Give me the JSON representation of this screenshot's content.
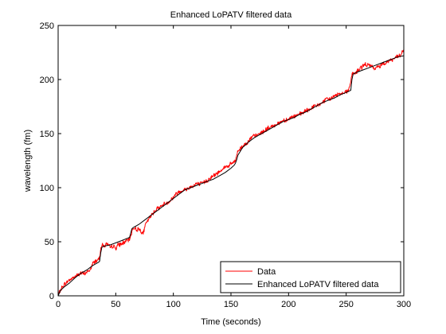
{
  "chart_data": {
    "type": "line",
    "title": "Enhanced LoPATV filtered data",
    "xlabel": "Time (seconds)",
    "ylabel": "wavelength  (fm)",
    "xlim": [
      0,
      300
    ],
    "ylim": [
      0,
      250
    ],
    "xticks": [
      0,
      50,
      100,
      150,
      200,
      250,
      300
    ],
    "yticks": [
      0,
      50,
      100,
      150,
      200,
      250
    ],
    "xtick_labels": [
      "0",
      "50",
      "100",
      "150",
      "200",
      "250",
      "300"
    ],
    "ytick_labels": [
      "0",
      "50",
      "100",
      "150",
      "200",
      "250"
    ],
    "grid": false,
    "legend_position": "bottom-right",
    "series": [
      {
        "name": "Data",
        "color": "#ff0000",
        "style": "noisy",
        "x": [
          0,
          1,
          3,
          5,
          8,
          10,
          12,
          15,
          18,
          20,
          22,
          25,
          28,
          30,
          32,
          34,
          35,
          36,
          37,
          38,
          40,
          42,
          45,
          48,
          50,
          52,
          55,
          58,
          60,
          62,
          63,
          64,
          65,
          66,
          68,
          70,
          72,
          74,
          75,
          76,
          78,
          80,
          82,
          85,
          88,
          90,
          92,
          95,
          98,
          100,
          102,
          105,
          108,
          110,
          112,
          115,
          118,
          120,
          122,
          125,
          128,
          130,
          132,
          135,
          138,
          140,
          142,
          145,
          148,
          150,
          152,
          154,
          155,
          156,
          158,
          160,
          162,
          165,
          168,
          170,
          172,
          175,
          178,
          180,
          182,
          185,
          188,
          190,
          192,
          195,
          198,
          200,
          202,
          205,
          208,
          210,
          212,
          215,
          218,
          220,
          222,
          225,
          228,
          230,
          232,
          235,
          238,
          240,
          242,
          245,
          248,
          250,
          252,
          254,
          255,
          256,
          258,
          260,
          262,
          265,
          268,
          270,
          272,
          275,
          278,
          280,
          282,
          285,
          288,
          290,
          292,
          295,
          297,
          298,
          299,
          300
        ],
        "y": [
          0,
          3,
          7,
          10,
          13,
          15,
          16,
          18,
          20,
          21,
          20,
          22,
          24,
          30,
          32,
          33,
          34,
          36,
          45,
          47,
          46,
          48,
          45,
          46,
          44,
          47,
          48,
          50,
          51,
          52,
          55,
          60,
          62,
          63,
          61,
          62,
          60,
          58,
          63,
          66,
          70,
          73,
          76,
          80,
          82,
          83,
          85,
          86,
          89,
          91,
          94,
          96,
          98,
          98,
          99,
          101,
          102,
          104,
          103,
          104,
          106,
          107,
          109,
          111,
          113,
          115,
          117,
          119,
          120,
          122,
          123,
          125,
          130,
          134,
          136,
          138,
          140,
          143,
          146,
          148,
          148,
          150,
          152,
          153,
          155,
          156,
          158,
          159,
          160,
          162,
          163,
          163,
          165,
          166,
          167,
          168,
          169,
          171,
          172,
          174,
          175,
          176,
          178,
          179,
          181,
          182,
          183,
          185,
          186,
          187,
          188,
          189,
          190,
          198,
          205,
          205,
          206,
          208,
          210,
          213,
          214,
          213,
          212,
          210,
          212,
          213,
          215,
          216,
          218,
          218,
          220,
          221,
          222,
          224,
          226,
          226
        ]
      },
      {
        "name": "Enhanced LoPATV filtered data",
        "color": "#000000",
        "style": "smooth",
        "x": [
          0,
          2,
          5,
          10,
          15,
          20,
          25,
          30,
          35,
          36,
          37,
          38,
          40,
          45,
          50,
          55,
          62,
          63,
          64,
          65,
          70,
          75,
          80,
          85,
          90,
          95,
          100,
          105,
          110,
          115,
          120,
          125,
          130,
          135,
          140,
          145,
          150,
          153,
          154,
          155,
          156,
          160,
          165,
          170,
          175,
          180,
          185,
          190,
          195,
          200,
          205,
          210,
          215,
          220,
          225,
          230,
          235,
          240,
          245,
          250,
          254,
          255,
          256,
          258,
          260,
          265,
          270,
          275,
          280,
          285,
          290,
          295,
          300
        ],
        "y": [
          0,
          5,
          8,
          12,
          17,
          21,
          24,
          28,
          31,
          32,
          40,
          45,
          46,
          47,
          49,
          51,
          54,
          58,
          62,
          63,
          66,
          70,
          74,
          78,
          82,
          86,
          90,
          94,
          98,
          100,
          102,
          104,
          106,
          108,
          111,
          114,
          118,
          121,
          123,
          126,
          130,
          137,
          142,
          146,
          149,
          152,
          155,
          158,
          161,
          163,
          165,
          168,
          170,
          173,
          176,
          179,
          181,
          183,
          186,
          188,
          190,
          200,
          205,
          206,
          207,
          209,
          211,
          213,
          215,
          217,
          219,
          221,
          222
        ]
      }
    ]
  }
}
